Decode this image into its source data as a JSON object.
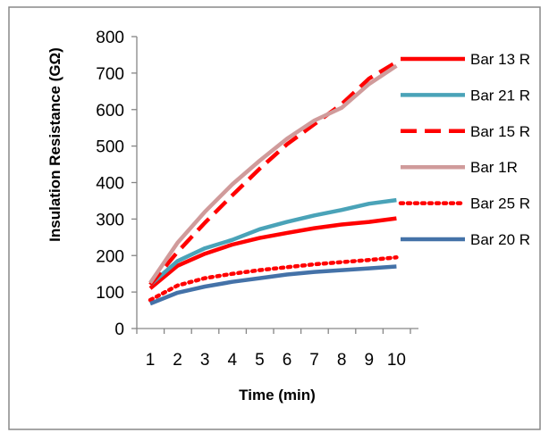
{
  "chart_data": {
    "type": "line",
    "title": "",
    "xlabel": "Time (min)",
    "ylabel": "Insulation Resistance (GΩ)",
    "categories": [
      "1",
      "2",
      "3",
      "4",
      "5",
      "6",
      "7",
      "8",
      "9",
      "10"
    ],
    "ylim": [
      0,
      800
    ],
    "yticks": [
      "0",
      "100",
      "200",
      "300",
      "400",
      "500",
      "600",
      "700",
      "800"
    ],
    "grid": false,
    "legend_position": "right",
    "series": [
      {
        "name": "Bar 13 R",
        "color": "#ff0000",
        "style": "solid",
        "values": [
          110,
          172,
          205,
          230,
          248,
          262,
          275,
          285,
          292,
          302
        ]
      },
      {
        "name": "Bar 21 R",
        "color": "#4aa3b8",
        "style": "solid",
        "values": [
          120,
          185,
          220,
          243,
          272,
          292,
          310,
          325,
          342,
          352
        ]
      },
      {
        "name": "Bar 15 R",
        "color": "#ff0000",
        "style": "dashed",
        "values": [
          120,
          210,
          290,
          365,
          438,
          505,
          560,
          615,
          685,
          730
        ]
      },
      {
        "name": "Bar  1R",
        "color": "#d09b9b",
        "style": "solid",
        "values": [
          125,
          235,
          320,
          395,
          460,
          520,
          570,
          605,
          670,
          720
        ]
      },
      {
        "name": "Bar 25 R",
        "color": "#ff0000",
        "style": "dotted",
        "values": [
          78,
          118,
          138,
          150,
          160,
          168,
          176,
          182,
          188,
          195
        ]
      },
      {
        "name": "Bar 20 R",
        "color": "#4472a8",
        "style": "solid",
        "values": [
          68,
          98,
          115,
          128,
          138,
          148,
          155,
          160,
          165,
          170
        ]
      }
    ]
  }
}
